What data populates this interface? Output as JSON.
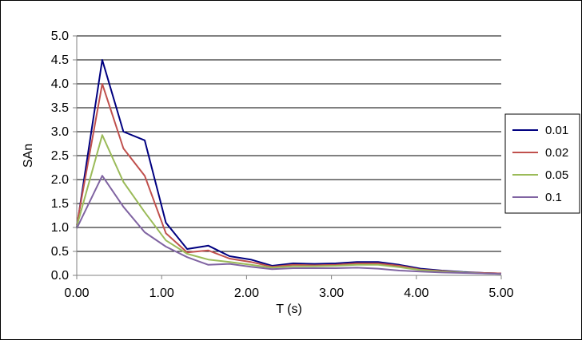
{
  "chart_data": {
    "type": "line",
    "xlabel": "T (s)",
    "ylabel": "SAn",
    "xlim": [
      0,
      5
    ],
    "ylim": [
      0,
      5
    ],
    "xticks": [
      "0.00",
      "1.00",
      "2.00",
      "3.00",
      "4.00",
      "5.00"
    ],
    "yticks": [
      "0.0",
      "0.5",
      "1.0",
      "1.5",
      "2.0",
      "2.5",
      "3.0",
      "3.5",
      "4.0",
      "4.5",
      "5.0"
    ],
    "grid": "horizontal",
    "legend_position": "right",
    "x": [
      0.0,
      0.3,
      0.55,
      0.8,
      1.05,
      1.3,
      1.55,
      1.8,
      2.05,
      2.3,
      2.55,
      2.8,
      3.05,
      3.3,
      3.55,
      3.8,
      4.05,
      4.3,
      4.55,
      4.8,
      5.0
    ],
    "series": [
      {
        "name": "0.01",
        "color": "#000080",
        "values": [
          1.0,
          4.5,
          3.0,
          2.82,
          1.1,
          0.55,
          0.62,
          0.4,
          0.33,
          0.2,
          0.25,
          0.24,
          0.25,
          0.28,
          0.28,
          0.22,
          0.14,
          0.1,
          0.07,
          0.05,
          0.04
        ]
      },
      {
        "name": "0.02",
        "color": "#c0504d",
        "values": [
          1.05,
          4.0,
          2.65,
          2.08,
          0.88,
          0.48,
          0.52,
          0.35,
          0.28,
          0.18,
          0.22,
          0.21,
          0.22,
          0.25,
          0.25,
          0.2,
          0.12,
          0.09,
          0.06,
          0.05,
          0.04
        ]
      },
      {
        "name": "0.05",
        "color": "#9bbb59",
        "values": [
          1.02,
          2.93,
          1.95,
          1.32,
          0.73,
          0.45,
          0.33,
          0.28,
          0.22,
          0.16,
          0.19,
          0.19,
          0.2,
          0.22,
          0.22,
          0.17,
          0.11,
          0.08,
          0.06,
          0.04,
          0.03
        ]
      },
      {
        "name": "0.1",
        "color": "#8064a2",
        "values": [
          0.98,
          2.08,
          1.43,
          0.9,
          0.6,
          0.38,
          0.22,
          0.24,
          0.18,
          0.13,
          0.15,
          0.15,
          0.15,
          0.16,
          0.14,
          0.1,
          0.08,
          0.06,
          0.05,
          0.04,
          0.03
        ]
      }
    ]
  }
}
